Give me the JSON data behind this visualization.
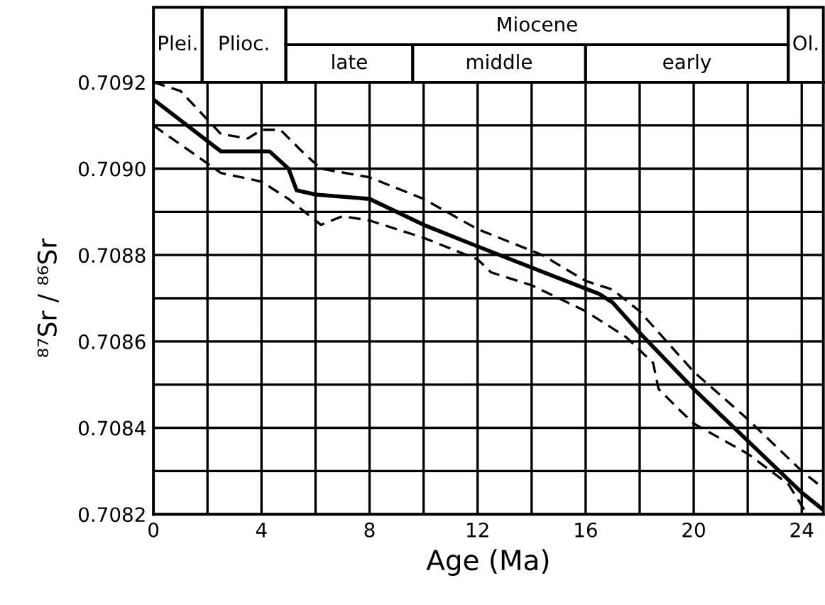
{
  "chart_data": [
    {
      "type": "other",
      "annotations": [
        "Plei.",
        "Plioc.",
        "Miocene",
        "late",
        "middle",
        "early",
        "Ol."
      ]
    },
    {
      "type": "line",
      "xlabel": "Age (Ma)",
      "ylabel": "⁸⁷Sr / ⁸⁶Sr",
      "xlim": [
        0,
        24.8
      ],
      "ylim": [
        0.7082,
        0.7092
      ],
      "xticks": [
        0,
        {
          "value": 2,
          "label": null
        },
        4,
        {
          "value": 6,
          "label": null
        },
        8,
        {
          "value": 10,
          "label": null
        },
        12,
        {
          "value": 14,
          "label": null
        },
        16,
        {
          "value": 18,
          "label": null
        },
        20,
        {
          "value": 22,
          "label": null
        },
        24
      ],
      "yticks": [
        0.7082,
        {
          "value": 0.7083,
          "label": null
        },
        0.7084,
        {
          "value": 0.7085,
          "label": null
        },
        0.7086,
        {
          "value": 0.7087,
          "label": null
        },
        0.7088,
        {
          "value": 0.7089,
          "label": null
        },
        {
          "value": 0.709,
          "label": "0.7090"
        },
        {
          "value": 0.7091,
          "label": null
        },
        0.7092
      ],
      "grid": true,
      "series": [
        {
          "color": "#000000",
          "line_style": "solid",
          "x": [
            0,
            2.5,
            4,
            4.3,
            5,
            5.3,
            6,
            8,
            10,
            12,
            16.5,
            17,
            18,
            20,
            22,
            24,
            24.8
          ],
          "values": [
            0.70916,
            0.70904,
            0.70904,
            0.70904,
            0.709,
            0.70895,
            0.70894,
            0.70893,
            0.70887,
            0.70882,
            0.70871,
            0.70869,
            0.70862,
            0.70849,
            0.70837,
            0.70825,
            0.70821
          ]
        },
        {
          "color": "#000000",
          "line_style": "dashed",
          "x": [
            0,
            1,
            2.5,
            3.5,
            4,
            4.7,
            5.5,
            6.2,
            8,
            10,
            12,
            14.4,
            16,
            17,
            18,
            20,
            22,
            24,
            24.8
          ],
          "values": [
            0.7092,
            0.70918,
            0.70908,
            0.70907,
            0.70909,
            0.70909,
            0.70904,
            0.709,
            0.70898,
            0.70893,
            0.70886,
            0.7088,
            0.70874,
            0.70872,
            0.70867,
            0.70853,
            0.70842,
            0.7083,
            0.70826
          ]
        },
        {
          "color": "#000000",
          "line_style": "dashed",
          "x": [
            0,
            2.5,
            4,
            5,
            6.2,
            7,
            8,
            10,
            12,
            12.5,
            14,
            16,
            17.5,
            18.5,
            18.7,
            19.5,
            20,
            22,
            23.5,
            24,
            24.2
          ],
          "values": [
            0.7091,
            0.70899,
            0.70897,
            0.70893,
            0.70887,
            0.70889,
            0.70888,
            0.70884,
            0.70879,
            0.70876,
            0.70873,
            0.70867,
            0.70861,
            0.70855,
            0.70849,
            0.70844,
            0.70841,
            0.70834,
            0.70827,
            0.70822,
            0.7082
          ]
        }
      ]
    }
  ]
}
